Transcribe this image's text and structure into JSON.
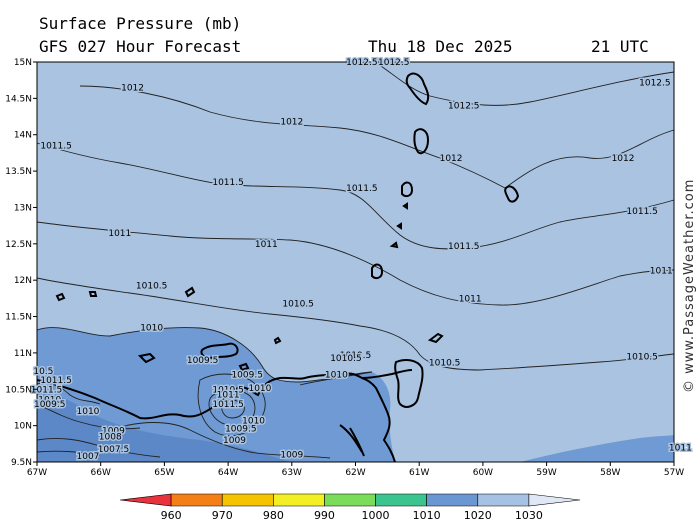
{
  "header": {
    "title": "Surface Pressure (mb)",
    "forecast": "GFS 027 Hour Forecast",
    "date": "Thu 18 Dec 2025",
    "time": "21 UTC"
  },
  "watermark": "© www.PassageWeather.com",
  "map": {
    "ocean_color": "#a9c3e1",
    "land_color": "#6f9ad4",
    "x_ticks": [
      "67W",
      "66W",
      "65W",
      "64W",
      "63W",
      "62W",
      "61W",
      "60W",
      "59W",
      "58W",
      "57W"
    ],
    "y_ticks": [
      "15N",
      "14.5N",
      "14N",
      "13.5N",
      "13N",
      "12.5N",
      "12N",
      "11.5N",
      "11N",
      "10.5N",
      "10N",
      "9.5N"
    ],
    "isobar_labels": [
      {
        "text": "1012.5",
        "lon": -61.9,
        "lat": 15.0
      },
      {
        "text": "1012.5",
        "lon": -61.4,
        "lat": 15.0
      },
      {
        "text": "1012",
        "lon": -65.5,
        "lat": 14.65
      },
      {
        "text": "1012.5",
        "lon": -57.3,
        "lat": 14.72
      },
      {
        "text": "1012.5",
        "lon": -60.3,
        "lat": 14.4
      },
      {
        "text": "1012",
        "lon": -63.0,
        "lat": 14.18
      },
      {
        "text": "1011.5",
        "lon": -66.7,
        "lat": 13.85
      },
      {
        "text": "1012",
        "lon": -60.5,
        "lat": 13.68
      },
      {
        "text": "1012",
        "lon": -57.8,
        "lat": 13.68
      },
      {
        "text": "1011.5",
        "lon": -64.0,
        "lat": 13.35
      },
      {
        "text": "1011.5",
        "lon": -61.9,
        "lat": 13.27
      },
      {
        "text": "1011.5",
        "lon": -57.5,
        "lat": 12.95
      },
      {
        "text": "1011",
        "lon": -65.7,
        "lat": 12.65
      },
      {
        "text": "1011",
        "lon": -63.4,
        "lat": 12.5
      },
      {
        "text": "1011.5",
        "lon": -60.3,
        "lat": 12.47
      },
      {
        "text": "1011",
        "lon": -57.2,
        "lat": 12.13
      },
      {
        "text": "1010.5",
        "lon": -65.2,
        "lat": 11.93
      },
      {
        "text": "1011",
        "lon": -60.2,
        "lat": 11.75
      },
      {
        "text": "1010.5",
        "lon": -62.9,
        "lat": 11.68
      },
      {
        "text": "1010",
        "lon": -65.2,
        "lat": 11.35
      },
      {
        "text": "1010.5",
        "lon": -62.0,
        "lat": 10.97
      },
      {
        "text": "1010.5",
        "lon": -62.15,
        "lat": 10.93
      },
      {
        "text": "1009.5",
        "lon": -64.4,
        "lat": 10.9
      },
      {
        "text": "1010.5",
        "lon": -57.5,
        "lat": 10.95
      },
      {
        "text": "1010.5",
        "lon": -60.6,
        "lat": 10.87
      },
      {
        "text": "1010",
        "lon": -62.3,
        "lat": 10.7
      },
      {
        "text": "1009.5",
        "lon": -63.7,
        "lat": 10.7
      },
      {
        "text": "1010.5",
        "lon": -64.0,
        "lat": 10.5
      },
      {
        "text": "1010",
        "lon": -63.5,
        "lat": 10.52
      },
      {
        "text": "1011",
        "lon": -64.0,
        "lat": 10.43
      },
      {
        "text": "1011.5",
        "lon": -64.0,
        "lat": 10.3
      },
      {
        "text": "1010",
        "lon": -63.6,
        "lat": 10.07
      },
      {
        "text": "1009.5",
        "lon": -63.8,
        "lat": 9.96
      },
      {
        "text": "1009",
        "lon": -63.9,
        "lat": 9.8
      },
      {
        "text": "1009",
        "lon": -63.0,
        "lat": 9.6
      },
      {
        "text": "1010",
        "lon": -66.2,
        "lat": 10.2
      },
      {
        "text": "1009",
        "lon": -65.8,
        "lat": 9.93
      },
      {
        "text": "1008",
        "lon": -65.85,
        "lat": 9.85
      },
      {
        "text": "1007.5",
        "lon": -65.8,
        "lat": 9.68
      },
      {
        "text": "1007",
        "lon": -66.2,
        "lat": 9.58
      },
      {
        "text": "1011.5",
        "lon": -66.7,
        "lat": 10.63
      },
      {
        "text": "1011.5",
        "lon": -66.85,
        "lat": 10.5
      },
      {
        "text": "1010",
        "lon": -66.8,
        "lat": 10.36
      },
      {
        "text": "1009.5",
        "lon": -66.8,
        "lat": 10.3
      },
      {
        "text": "1011",
        "lon": -56.9,
        "lat": 9.7
      },
      {
        "text": "10.5",
        "lon": -66.9,
        "lat": 10.75
      }
    ]
  },
  "legend": {
    "ticks": [
      "960",
      "970",
      "980",
      "990",
      "1000",
      "1010",
      "1020",
      "1030"
    ],
    "colors": [
      "#e8323c",
      "#f57f17",
      "#f6c300",
      "#f2ef25",
      "#7bdc5a",
      "#3cc48e",
      "#6a96d2",
      "#a6c2e2",
      "#dfe8f4"
    ]
  }
}
